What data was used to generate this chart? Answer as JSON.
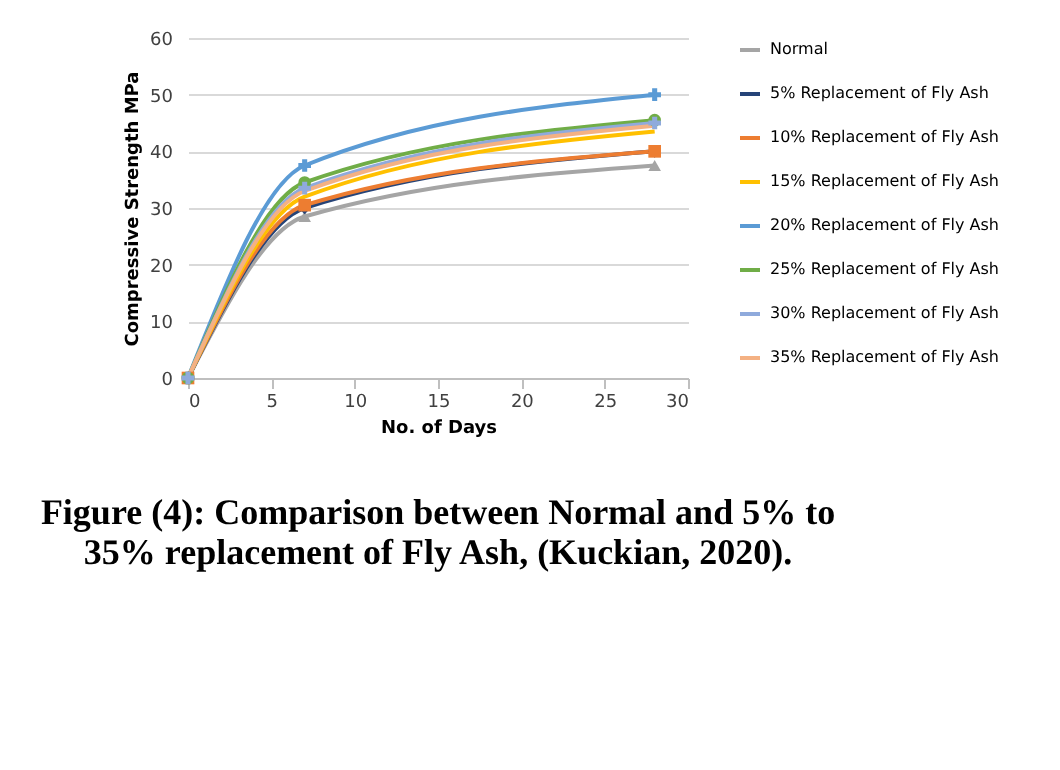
{
  "chart_data": {
    "type": "line",
    "title": "Figure (4): Comparison between Normal and 5% to 35% replacement of Fly Ash, (Kuckian, 2020).",
    "xlabel": "No. of Days",
    "ylabel": "Compressive Strength MPa",
    "x": [
      0,
      7,
      28
    ],
    "series": [
      {
        "name": "Normal",
        "color": "#a5a5a5",
        "marker": "triangle",
        "values": [
          0,
          28.5,
          37.5
        ]
      },
      {
        "name": "5% Replacement of Fly Ash",
        "color": "#264478",
        "marker": "diamond",
        "values": [
          0,
          30,
          40
        ]
      },
      {
        "name": "10% Replacement of Fly Ash",
        "color": "#ed7d31",
        "marker": "square",
        "values": [
          0,
          30.5,
          40
        ]
      },
      {
        "name": "15% Replacement of Fly Ash",
        "color": "#ffc000",
        "marker": "none",
        "values": [
          0,
          32,
          43.5
        ]
      },
      {
        "name": "20% Replacement of Fly Ash",
        "color": "#5b9bd5",
        "marker": "cross",
        "values": [
          0,
          37.5,
          50
        ]
      },
      {
        "name": "25% Replacement of Fly Ash",
        "color": "#70ad47",
        "marker": "circle",
        "values": [
          0,
          34.5,
          45.5
        ]
      },
      {
        "name": "30% Replacement of Fly Ash",
        "color": "#8faadc",
        "marker": "cross",
        "values": [
          0,
          33.5,
          45
        ]
      },
      {
        "name": "35% Replacement of Fly Ash",
        "color": "#f4b183",
        "marker": "none",
        "values": [
          0,
          33,
          44.5
        ]
      }
    ],
    "xlim": [
      0,
      30
    ],
    "xticks": [
      0,
      5,
      10,
      15,
      20,
      25,
      30
    ],
    "ylim": [
      0,
      60
    ],
    "yticks": [
      0,
      10,
      20,
      30,
      40,
      50,
      60
    ],
    "grid": "y",
    "legend": "right",
    "line_style": "solid"
  }
}
